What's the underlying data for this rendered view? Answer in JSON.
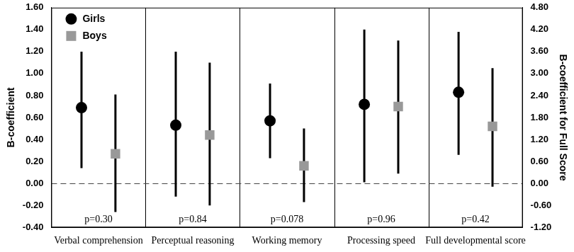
{
  "chart_data": {
    "type": "scatter",
    "categories": [
      "Verbal comprehension",
      "Perceptual reasoning",
      "Working memory",
      "Processing speed",
      "Full developmental score"
    ],
    "series": [
      {
        "name": "Girls",
        "color": "#000000",
        "marker": "circle",
        "values": [
          0.69,
          0.53,
          0.57,
          0.72,
          null
        ],
        "ci_lower": [
          0.14,
          -0.12,
          0.23,
          0.01,
          null
        ],
        "ci_upper": [
          1.2,
          1.2,
          0.91,
          1.4,
          null
        ]
      },
      {
        "name": "Boys",
        "color": "#999999",
        "marker": "square",
        "values": [
          0.27,
          0.44,
          0.16,
          0.7,
          null
        ],
        "ci_lower": [
          -0.26,
          -0.2,
          -0.17,
          0.09,
          null
        ],
        "ci_upper": [
          0.81,
          1.1,
          0.5,
          1.3,
          null
        ]
      },
      {
        "name": "Girls",
        "color": "#000000",
        "marker": "circle",
        "axis": "y2",
        "values": [
          null,
          null,
          null,
          null,
          2.49
        ],
        "ci_lower": [
          null,
          null,
          null,
          null,
          0.78
        ],
        "ci_upper": [
          null,
          null,
          null,
          null,
          4.14
        ]
      },
      {
        "name": "Boys",
        "color": "#999999",
        "marker": "square",
        "axis": "y2",
        "values": [
          null,
          null,
          null,
          null,
          1.56
        ],
        "ci_lower": [
          null,
          null,
          null,
          null,
          -0.09
        ],
        "ci_upper": [
          null,
          null,
          null,
          null,
          3.15
        ]
      }
    ],
    "y_label": "B-coefficient",
    "y2_label": "B-coefficient for Full Score",
    "ylim": [
      -0.4,
      1.6
    ],
    "yticks": [
      {
        "value": -0.4,
        "label": "-0.40"
      },
      {
        "value": -0.2,
        "label": "-0.20"
      },
      {
        "value": 0,
        "label": "0.00"
      },
      {
        "value": 0.2,
        "label": "0.20"
      },
      {
        "value": 0.4,
        "label": "0.40"
      },
      {
        "value": 0.6,
        "label": "0.60"
      },
      {
        "value": 0.8,
        "label": "0.80"
      },
      {
        "value": 1.0,
        "label": "1.00"
      },
      {
        "value": 1.2,
        "label": "1.20"
      },
      {
        "value": 1.4,
        "label": "1.40"
      },
      {
        "value": 1.6,
        "label": "1.60"
      }
    ],
    "y2lim": [
      -1.2,
      4.8
    ],
    "y2ticks": [
      {
        "value": -1.2,
        "label": "-1.20"
      },
      {
        "value": -0.6,
        "label": "-0.60"
      },
      {
        "value": 0,
        "label": "0.00"
      },
      {
        "value": 0.6,
        "label": "0.60"
      },
      {
        "value": 1.2,
        "label": "1.20"
      },
      {
        "value": 1.8,
        "label": "1.80"
      },
      {
        "value": 2.4,
        "label": "2.40"
      },
      {
        "value": 3.0,
        "label": "3.00"
      },
      {
        "value": 3.6,
        "label": "3.60"
      },
      {
        "value": 4.2,
        "label": "4.20"
      },
      {
        "value": 4.8,
        "label": "4.80"
      }
    ],
    "reference_line": 0,
    "annotations": [
      "p=0.30",
      "p=0.84",
      "p=0.078",
      "p=0.96",
      "p=0.42"
    ],
    "legend": "upper left",
    "grid": false
  }
}
